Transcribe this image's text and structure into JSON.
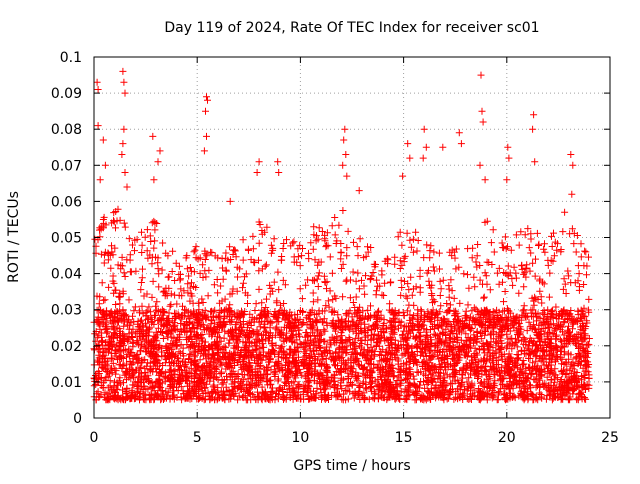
{
  "chart_data": {
    "type": "scatter",
    "title": "Day 119 of 2024, Rate Of TEC Index for receiver sc01",
    "xlabel": "GPS time / hours",
    "ylabel": "ROTI / TECUs",
    "xlim": [
      0,
      25
    ],
    "ylim": [
      0,
      0.1
    ],
    "xticks": [
      0,
      5,
      10,
      15,
      20,
      25
    ],
    "xtick_labels": [
      "0",
      "5",
      "10",
      "15",
      "20",
      "25"
    ],
    "yticks": [
      0,
      0.01,
      0.02,
      0.03,
      0.04,
      0.05,
      0.06,
      0.07,
      0.08,
      0.09,
      0.1
    ],
    "ytick_labels": [
      "0",
      "0.01",
      "0.02",
      "0.03",
      "0.04",
      "0.05",
      "0.06",
      "0.07",
      "0.08",
      "0.09",
      "0.1"
    ],
    "grid": true,
    "marker": "+",
    "color": "#ff0000",
    "data_range_x": [
      0,
      24
    ],
    "baseline_band": [
      0.005,
      0.03
    ],
    "representative_envelope": [
      {
        "x": 0.0,
        "y_max": 0.055
      },
      {
        "x": 1.0,
        "y_max": 0.06
      },
      {
        "x": 2.0,
        "y_max": 0.05
      },
      {
        "x": 3.0,
        "y_max": 0.055
      },
      {
        "x": 4.0,
        "y_max": 0.045
      },
      {
        "x": 5.0,
        "y_max": 0.05
      },
      {
        "x": 6.0,
        "y_max": 0.045
      },
      {
        "x": 7.0,
        "y_max": 0.05
      },
      {
        "x": 8.0,
        "y_max": 0.055
      },
      {
        "x": 9.0,
        "y_max": 0.05
      },
      {
        "x": 10.0,
        "y_max": 0.05
      },
      {
        "x": 11.0,
        "y_max": 0.055
      },
      {
        "x": 12.0,
        "y_max": 0.06
      },
      {
        "x": 13.0,
        "y_max": 0.05
      },
      {
        "x": 14.0,
        "y_max": 0.045
      },
      {
        "x": 15.0,
        "y_max": 0.055
      },
      {
        "x": 16.0,
        "y_max": 0.05
      },
      {
        "x": 17.0,
        "y_max": 0.045
      },
      {
        "x": 18.0,
        "y_max": 0.05
      },
      {
        "x": 19.0,
        "y_max": 0.055
      },
      {
        "x": 20.0,
        "y_max": 0.05
      },
      {
        "x": 21.0,
        "y_max": 0.055
      },
      {
        "x": 22.0,
        "y_max": 0.05
      },
      {
        "x": 23.0,
        "y_max": 0.055
      },
      {
        "x": 24.0,
        "y_max": 0.045
      }
    ],
    "outliers": [
      {
        "x": 0.15,
        "y": 0.093
      },
      {
        "x": 0.2,
        "y": 0.091
      },
      {
        "x": 0.2,
        "y": 0.081
      },
      {
        "x": 0.45,
        "y": 0.077
      },
      {
        "x": 0.3,
        "y": 0.066
      },
      {
        "x": 0.55,
        "y": 0.07
      },
      {
        "x": 1.4,
        "y": 0.096
      },
      {
        "x": 1.45,
        "y": 0.093
      },
      {
        "x": 1.5,
        "y": 0.09
      },
      {
        "x": 1.45,
        "y": 0.08
      },
      {
        "x": 1.4,
        "y": 0.076
      },
      {
        "x": 1.35,
        "y": 0.073
      },
      {
        "x": 1.6,
        "y": 0.064
      },
      {
        "x": 1.5,
        "y": 0.068
      },
      {
        "x": 2.85,
        "y": 0.078
      },
      {
        "x": 3.2,
        "y": 0.074
      },
      {
        "x": 3.1,
        "y": 0.071
      },
      {
        "x": 2.9,
        "y": 0.066
      },
      {
        "x": 5.45,
        "y": 0.089
      },
      {
        "x": 5.5,
        "y": 0.088
      },
      {
        "x": 5.4,
        "y": 0.085
      },
      {
        "x": 5.45,
        "y": 0.078
      },
      {
        "x": 5.35,
        "y": 0.074
      },
      {
        "x": 6.6,
        "y": 0.06
      },
      {
        "x": 8.0,
        "y": 0.071
      },
      {
        "x": 7.9,
        "y": 0.068
      },
      {
        "x": 8.9,
        "y": 0.071
      },
      {
        "x": 8.95,
        "y": 0.068
      },
      {
        "x": 12.15,
        "y": 0.08
      },
      {
        "x": 12.1,
        "y": 0.077
      },
      {
        "x": 12.2,
        "y": 0.073
      },
      {
        "x": 12.05,
        "y": 0.07
      },
      {
        "x": 12.25,
        "y": 0.067
      },
      {
        "x": 12.85,
        "y": 0.063
      },
      {
        "x": 15.2,
        "y": 0.076
      },
      {
        "x": 15.3,
        "y": 0.072
      },
      {
        "x": 14.95,
        "y": 0.067
      },
      {
        "x": 16.0,
        "y": 0.08
      },
      {
        "x": 16.1,
        "y": 0.075
      },
      {
        "x": 15.95,
        "y": 0.072
      },
      {
        "x": 16.9,
        "y": 0.075
      },
      {
        "x": 17.7,
        "y": 0.079
      },
      {
        "x": 17.8,
        "y": 0.076
      },
      {
        "x": 18.75,
        "y": 0.095
      },
      {
        "x": 18.8,
        "y": 0.085
      },
      {
        "x": 18.85,
        "y": 0.082
      },
      {
        "x": 18.7,
        "y": 0.07
      },
      {
        "x": 18.95,
        "y": 0.066
      },
      {
        "x": 20.05,
        "y": 0.075
      },
      {
        "x": 20.1,
        "y": 0.072
      },
      {
        "x": 20.0,
        "y": 0.066
      },
      {
        "x": 21.3,
        "y": 0.084
      },
      {
        "x": 21.25,
        "y": 0.08
      },
      {
        "x": 21.35,
        "y": 0.071
      },
      {
        "x": 23.1,
        "y": 0.073
      },
      {
        "x": 23.2,
        "y": 0.07
      },
      {
        "x": 23.15,
        "y": 0.062
      },
      {
        "x": 22.8,
        "y": 0.057
      }
    ]
  }
}
